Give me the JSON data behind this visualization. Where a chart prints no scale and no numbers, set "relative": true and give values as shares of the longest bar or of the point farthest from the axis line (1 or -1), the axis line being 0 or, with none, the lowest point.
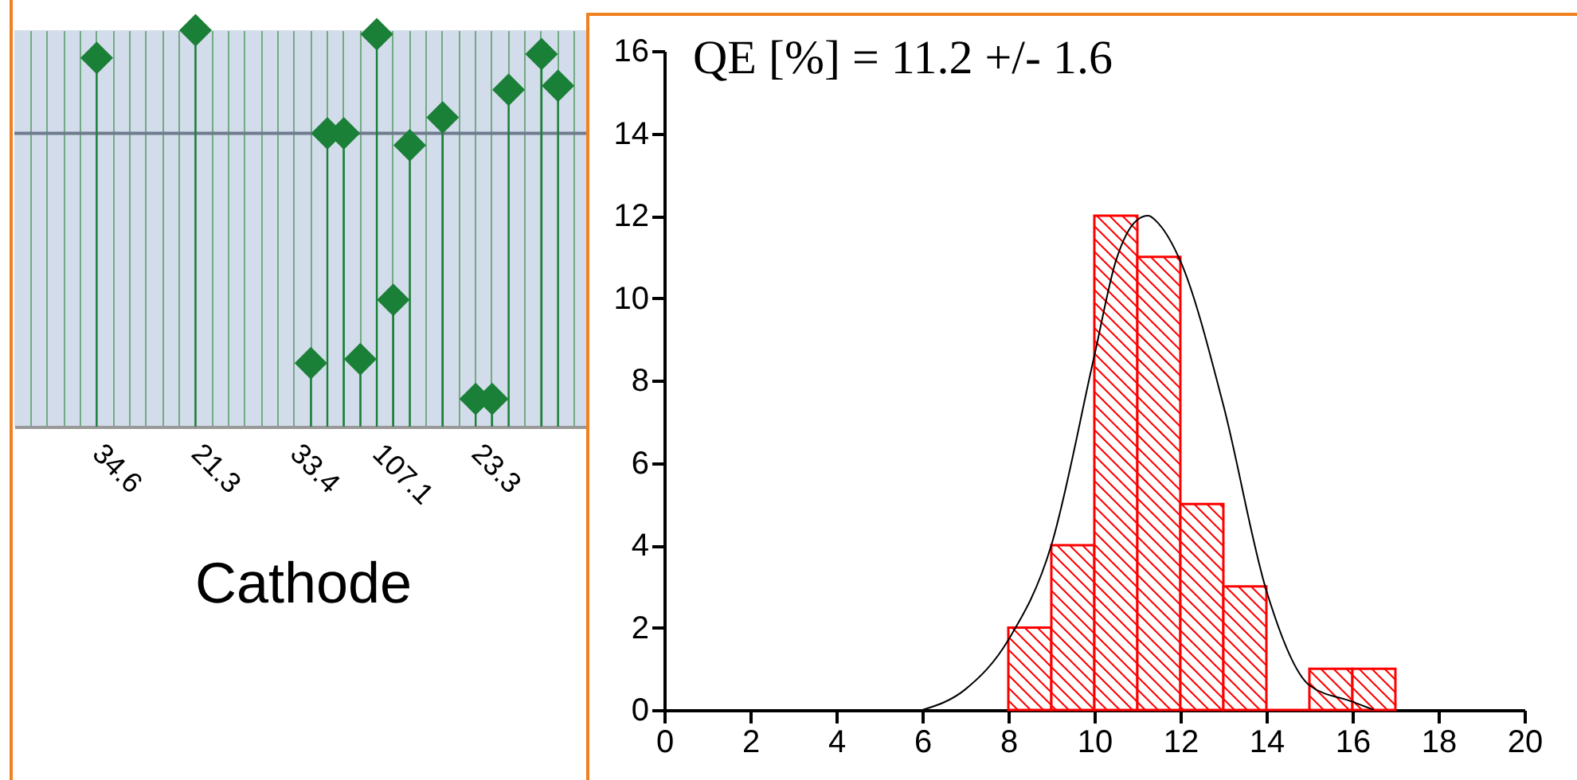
{
  "chart_data": [
    {
      "type": "lollipop",
      "xlabel": "Cathode",
      "relative": true,
      "marker": "diamond",
      "color": "#1a7f37",
      "categories": [
        null,
        null,
        null,
        null,
        "34.6",
        null,
        null,
        null,
        null,
        null,
        "21.3",
        null,
        null,
        null,
        null,
        null,
        "33.4",
        null,
        null,
        null,
        null,
        "107.1",
        null,
        null,
        null,
        null,
        null,
        "23.3",
        null,
        null,
        null,
        null,
        null,
        null
      ],
      "values": [
        null,
        null,
        null,
        null,
        0.93,
        null,
        null,
        null,
        null,
        null,
        1.0,
        null,
        null,
        null,
        null,
        null,
        null,
        0.16,
        0.74,
        0.74,
        0.17,
        0.99,
        0.32,
        0.71,
        null,
        0.78,
        null,
        0.07,
        0.07,
        0.85,
        null,
        0.94,
        0.86,
        null
      ],
      "grid": "x",
      "ref_lines": [
        {
          "axis": "y",
          "value": 0.74,
          "color": "#6d7b8d"
        }
      ]
    },
    {
      "type": "histogram",
      "annotations": [
        "QE [%] = 11.2 +/- 1.6"
      ],
      "color": "#ff0000",
      "bins": [
        8,
        9,
        10,
        11,
        12,
        13,
        14,
        15,
        16,
        17
      ],
      "values": [
        2,
        4,
        12,
        11,
        5,
        3,
        0,
        1,
        1
      ],
      "xlim": [
        0,
        20
      ],
      "xticks": [
        0,
        2,
        4,
        6,
        8,
        10,
        12,
        14,
        16,
        18,
        20
      ],
      "ylim": [
        0,
        16
      ],
      "yticks": [
        0,
        2,
        4,
        6,
        8,
        10,
        12,
        14,
        16
      ],
      "series": [
        {
          "type": "line",
          "color": "#000000",
          "x": [
            6,
            7,
            8,
            9,
            10,
            10.5,
            11,
            11.25,
            11.5,
            12,
            13,
            14,
            15,
            16,
            16.5
          ],
          "values": [
            0,
            0.5,
            1.7,
            4.0,
            8.6,
            10.9,
            11.9,
            12,
            11.8,
            10.9,
            7.4,
            2.9,
            0.6,
            0.2,
            0
          ]
        }
      ]
    }
  ]
}
